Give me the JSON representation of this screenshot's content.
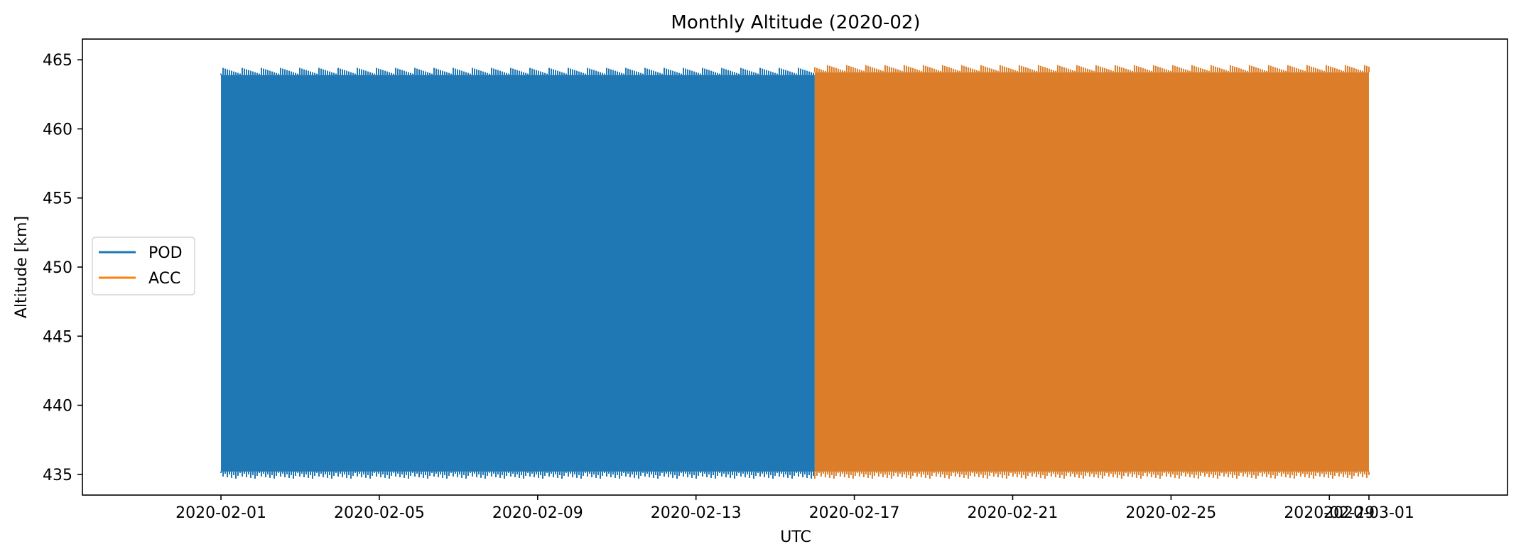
{
  "chart_data": {
    "type": "line",
    "title": "Monthly Altitude (2020-02)",
    "xlabel": "UTC",
    "ylabel": "Altitude [km]",
    "x_range": [
      "2020-01-28T12:00",
      "2020-03-04T12:00"
    ],
    "ylim": [
      433.5,
      466.5
    ],
    "yticks": [
      435,
      440,
      445,
      450,
      455,
      460,
      465
    ],
    "xticks": [
      "2020-02-01",
      "2020-02-05",
      "2020-02-09",
      "2020-02-13",
      "2020-02-17",
      "2020-02-21",
      "2020-02-25",
      "2020-02-29",
      "2020-03-01"
    ],
    "grid": false,
    "legend_position": "center-left",
    "series": [
      {
        "name": "POD",
        "color": "#1f77b4",
        "x_start": "2020-02-01T00:00",
        "x_end": "2020-02-16T00:00",
        "y_min": 435.2,
        "y_max": 463.9
      },
      {
        "name": "ACC",
        "color": "#ff7f0e",
        "render_color": "#db7d29",
        "x_start": "2020-02-16T00:00",
        "x_end": "2020-03-01T00:00",
        "y_min": 435.2,
        "y_max": 464.1
      }
    ]
  }
}
